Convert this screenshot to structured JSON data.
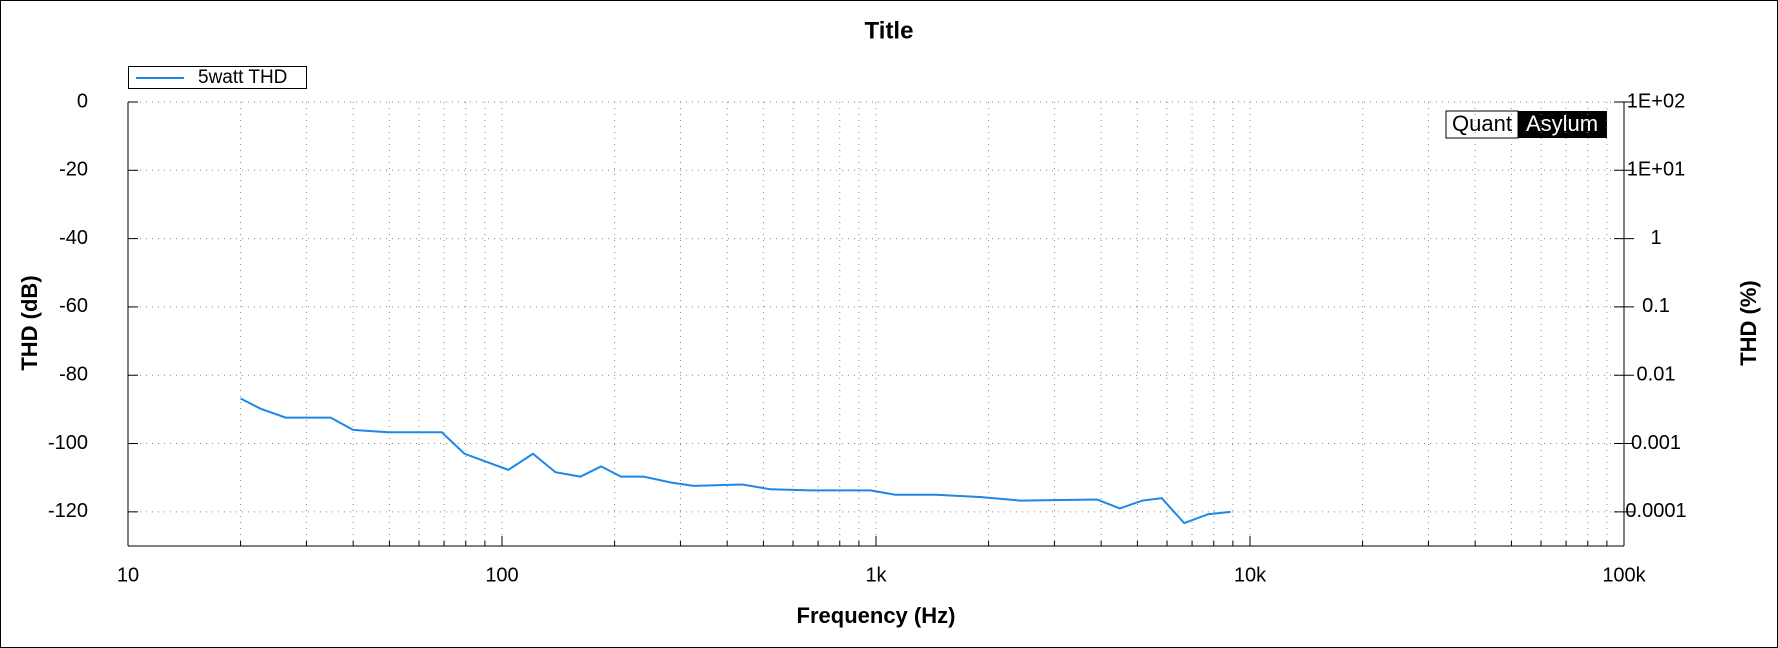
{
  "chart_data": {
    "type": "line",
    "title": "Title",
    "x_label": "Frequency (Hz)",
    "y_label": "THD (dB)",
    "y2_label": "THD (%)",
    "logo": {
      "left": "Quant",
      "right": "Asylum"
    },
    "x_scale": "log",
    "y2_scale": "log",
    "grid": true,
    "legend": "top-left",
    "xlim": [
      10,
      100000
    ],
    "xticks": [
      10,
      100,
      {
        "value": 1000,
        "label": "1k"
      },
      {
        "value": 10000,
        "label": "10k"
      },
      {
        "value": 100000,
        "label": "100k"
      }
    ],
    "ylim": [
      -130,
      0
    ],
    "yticks": [
      0,
      -20,
      -40,
      -60,
      -80,
      -100,
      -120
    ],
    "y2lim": [
      3.16e-05,
      100
    ],
    "y2ticks": [
      {
        "value": 100,
        "label": "1E+02"
      },
      {
        "value": 10,
        "label": "1E+01"
      },
      1,
      0.1,
      0.01,
      0.001,
      0.0001
    ],
    "x": [
      20,
      22.6,
      26.4,
      34.8,
      40,
      49.7,
      69,
      79.4,
      104,
      121,
      139,
      162,
      184,
      208,
      239,
      283,
      325,
      439,
      523,
      667,
      966,
      1127,
      1449,
      1914,
      2428,
      3900,
      4486,
      5157,
      5808,
      6671,
      7724,
      8873
    ],
    "series": [
      {
        "name": "5watt THD",
        "color": "#1e88e5",
        "values": [
          -86.8,
          -89.8,
          -92.4,
          -92.4,
          -96,
          -96.7,
          -96.7,
          -103,
          -107.7,
          -103,
          -108.4,
          -109.7,
          -106.7,
          -109.7,
          -109.7,
          -111.4,
          -112.4,
          -112,
          -113.4,
          -113.7,
          -113.7,
          -115,
          -115,
          -115.7,
          -116.7,
          -116.4,
          -119,
          -116.7,
          -116,
          -123.3,
          -120.7,
          -120
        ]
      }
    ]
  }
}
